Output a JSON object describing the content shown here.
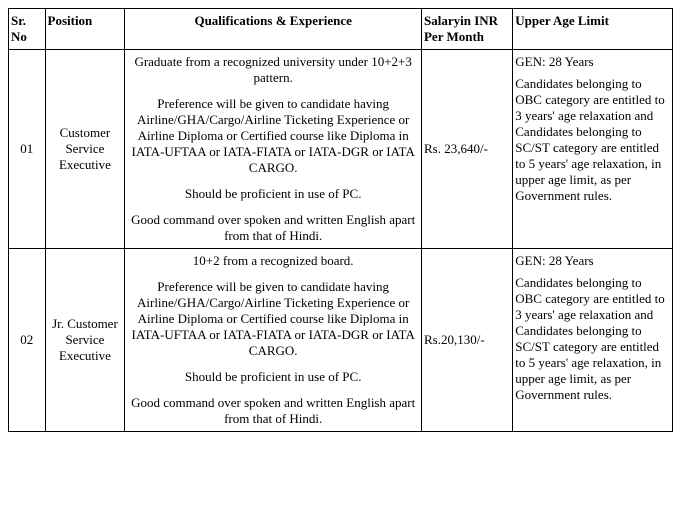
{
  "headers": {
    "sr": "Sr. No",
    "position": "Position",
    "qual": "Qualifications & Experience",
    "salary": "Salaryin INR Per Month",
    "age": "Upper Age Limit"
  },
  "rows": [
    {
      "sr": "01",
      "position": "Customer Service Executive",
      "qual_p1": "Graduate from a recognized university under 10+2+3 pattern.",
      "qual_p2": "Preference will be given to candidate having Airline/GHA/Cargo/Airline Ticketing Experience or Airline Diploma or Certified course like Diploma in IATA-UFTAA or IATA-FIATA or IATA-DGR or IATA CARGO.",
      "qual_p3": "Should be proficient in use of PC.",
      "qual_p4": "Good command over spoken and written English apart from that of Hindi.",
      "salary": "Rs. 23,640/-",
      "age_p1": " GEN: 28 Years",
      "age_p2": "Candidates belonging to OBC category are entitled to 3 years' age relaxation and Candidates belonging to SC/ST category are entitled to 5 years' age relaxation, in upper age limit, as per Government rules."
    },
    {
      "sr": "02",
      "position": "Jr. Customer Service Executive",
      "qual_p1": "10+2 from a recognized board.",
      "qual_p2": "Preference will be given to candidate having Airline/GHA/Cargo/Airline Ticketing Experience or Airline Diploma or Certified course like Diploma in IATA-UFTAA or IATA-FIATA or IATA-DGR or IATA CARGO.",
      "qual_p3": "Should be proficient in use of PC.",
      "qual_p4": "Good command over spoken and written English apart from that of Hindi.",
      "salary": "Rs.20,130/-",
      "age_p1": " GEN: 28 Years",
      "age_p2": "Candidates belonging to OBC category are entitled to 3 years' age relaxation and Candidates belonging to SC/ST category are entitled to 5 years' age relaxation, in upper age limit, as per Government rules."
    }
  ]
}
